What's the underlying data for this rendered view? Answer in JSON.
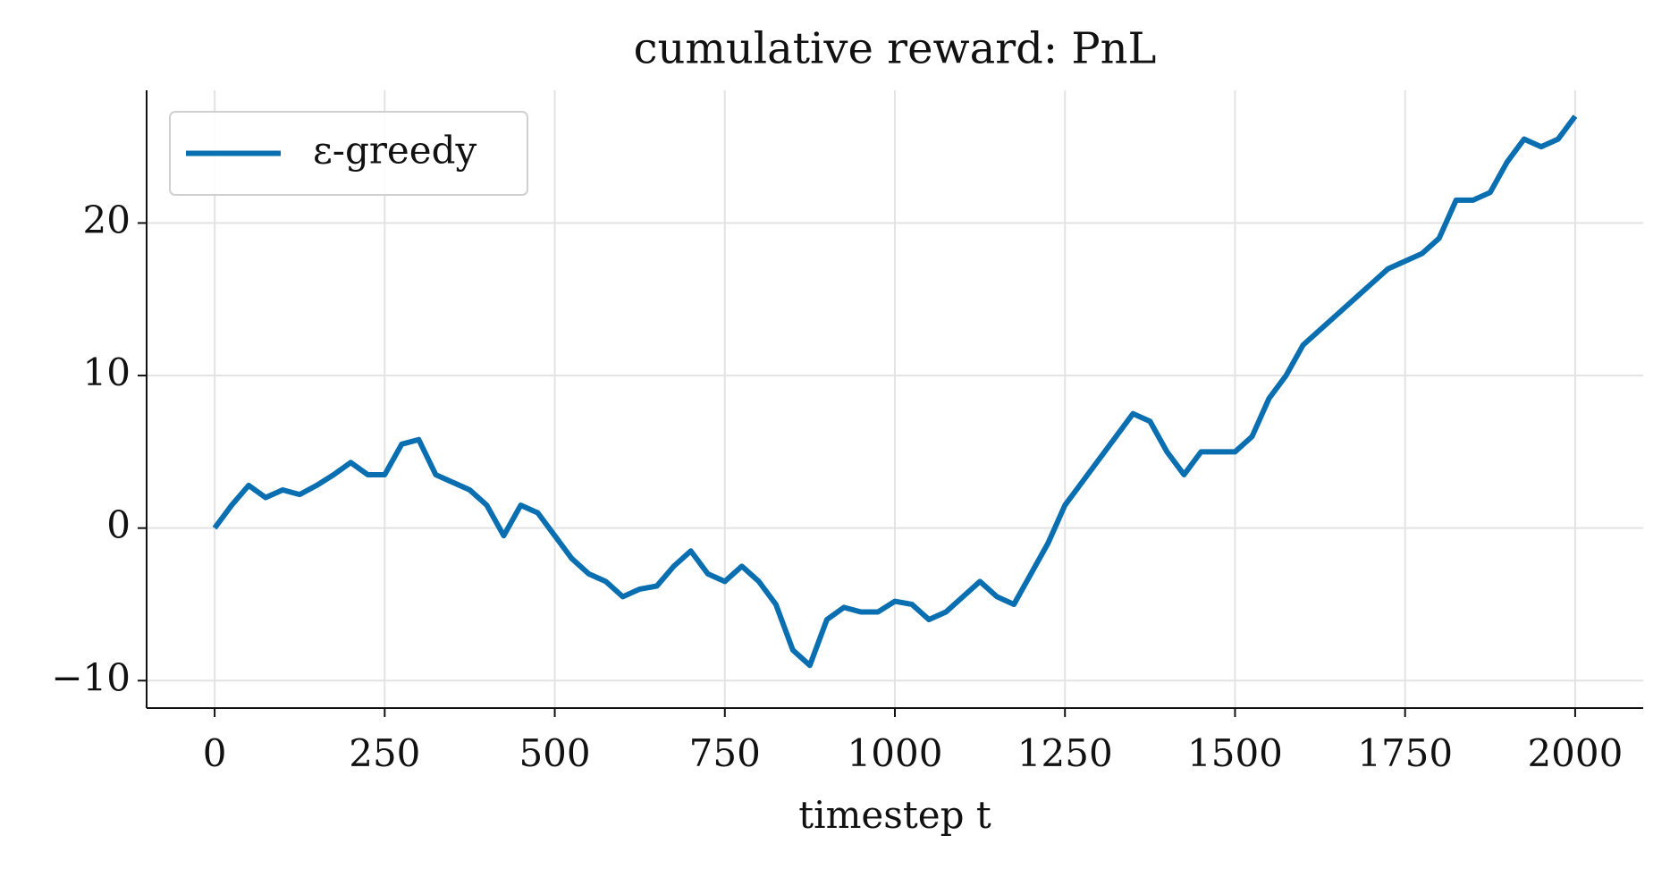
{
  "chart_data": {
    "type": "line",
    "title": "cumulative reward: PnL",
    "x_label": "timestep t",
    "x": [
      0,
      25,
      50,
      75,
      100,
      125,
      150,
      175,
      200,
      225,
      250,
      275,
      300,
      325,
      350,
      375,
      400,
      425,
      450,
      475,
      500,
      525,
      550,
      575,
      600,
      625,
      650,
      675,
      700,
      725,
      750,
      775,
      800,
      825,
      850,
      875,
      900,
      925,
      950,
      975,
      1000,
      1025,
      1050,
      1075,
      1100,
      1125,
      1150,
      1175,
      1200,
      1225,
      1250,
      1275,
      1300,
      1325,
      1350,
      1375,
      1400,
      1425,
      1450,
      1475,
      1500,
      1525,
      1550,
      1575,
      1600,
      1625,
      1650,
      1675,
      1700,
      1725,
      1750,
      1775,
      1800,
      1825,
      1850,
      1875,
      1900,
      1925,
      1950,
      1975,
      2000
    ],
    "series": [
      {
        "name": "ε-greedy",
        "color": "#0a6fb0",
        "values": [
          0,
          1.5,
          2.8,
          2,
          2.5,
          2.2,
          2.8,
          3.5,
          4.3,
          3.5,
          3.5,
          5.5,
          5.8,
          3.5,
          3,
          2.5,
          1.5,
          -0.5,
          1.5,
          1,
          -0.5,
          -2,
          -3,
          -3.5,
          -4.5,
          -4,
          -3.8,
          -2.5,
          -1.5,
          -3,
          -3.5,
          -2.5,
          -3.5,
          -5,
          -8,
          -9,
          -6,
          -5.2,
          -5.5,
          -5.5,
          -4.8,
          -5,
          -6,
          -5.5,
          -4.5,
          -3.5,
          -4.5,
          -5,
          -3,
          -1,
          1.5,
          3,
          4.5,
          6,
          7.5,
          7,
          5,
          3.5,
          5,
          5,
          5,
          6,
          8.5,
          10,
          12,
          13,
          14,
          15,
          16,
          17,
          17.5,
          18,
          19,
          21.5,
          21.5,
          22,
          24,
          25.5,
          25,
          25.5,
          27
        ]
      }
    ],
    "xlim": [
      -100,
      2100
    ],
    "ylim": [
      -11.8,
      28.7
    ],
    "xticks": [
      0,
      250,
      500,
      750,
      1000,
      1250,
      1500,
      1750,
      2000
    ],
    "yticks": [
      {
        "value": -10,
        "label": "−10"
      },
      0,
      10,
      20
    ],
    "grid": true,
    "legend": "upper left"
  }
}
